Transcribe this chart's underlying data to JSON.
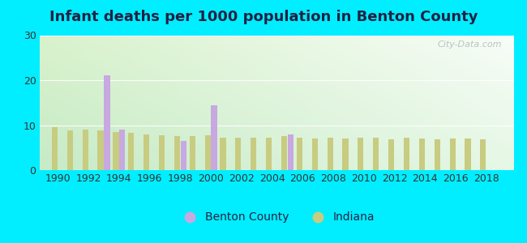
{
  "title": "Infant deaths per 1000 population in Benton County",
  "years": [
    1990,
    1991,
    1992,
    1993,
    1994,
    1995,
    1996,
    1997,
    1998,
    1999,
    2000,
    2001,
    2002,
    2003,
    2004,
    2005,
    2006,
    2007,
    2008,
    2009,
    2010,
    2011,
    2012,
    2013,
    2014,
    2015,
    2016,
    2017,
    2018
  ],
  "benton": [
    0,
    0,
    0,
    21.0,
    9.0,
    0,
    0,
    0,
    6.5,
    0,
    14.5,
    0,
    0,
    0,
    0,
    8.0,
    0,
    0,
    0,
    0,
    0,
    0,
    0,
    0,
    0,
    0,
    0,
    0,
    0
  ],
  "indiana": [
    9.5,
    8.8,
    9.0,
    8.8,
    8.5,
    8.3,
    8.0,
    7.8,
    7.5,
    7.5,
    7.8,
    7.2,
    7.2,
    7.2,
    7.2,
    7.5,
    7.2,
    7.0,
    7.2,
    7.0,
    7.2,
    7.2,
    6.8,
    7.2,
    7.0,
    6.8,
    7.0,
    7.0,
    6.8
  ],
  "benton_color": "#c8a8e0",
  "indiana_color": "#c8cc80",
  "ylim": [
    0,
    30
  ],
  "yticks": [
    0,
    10,
    20,
    30
  ],
  "bar_width": 0.38,
  "outer_bg": "#00eeff",
  "title_fontsize": 13,
  "title_color": "#222244",
  "tick_color": "#333333",
  "legend_labels": [
    "Benton County",
    "Indiana"
  ],
  "watermark": "City-Data.com",
  "xlim_left": 1988.8,
  "xlim_right": 2019.8
}
